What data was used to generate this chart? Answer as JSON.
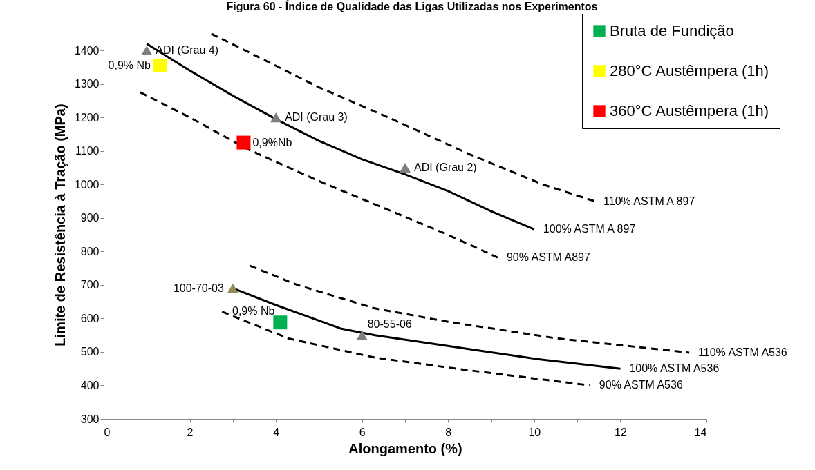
{
  "chart_data": {
    "type": "scatter",
    "title": "Figura 60 - Índice de Qualidade das Ligas Utilizadas nos Experimentos",
    "xlabel": "Alongamento (%)",
    "ylabel": "Limite de Resistência à Tração (MPa)",
    "xlim": [
      0,
      14
    ],
    "xticks": [
      0,
      {
        "value": 1,
        "label": null
      },
      2,
      {
        "value": 3,
        "label": null
      },
      4,
      {
        "value": 5,
        "label": null
      },
      6,
      {
        "value": 7,
        "label": null
      },
      8,
      {
        "value": 9,
        "label": null
      },
      10,
      {
        "value": 11,
        "label": null
      },
      12,
      {
        "value": 13,
        "label": null
      },
      14
    ],
    "ylim": [
      300,
      1460
    ],
    "yticks": [
      300,
      400,
      500,
      600,
      700,
      800,
      900,
      1000,
      1100,
      1200,
      1300,
      1400
    ],
    "grid": false,
    "legend": "top right",
    "series": [
      {
        "type": "line",
        "line_style": "solid",
        "color": "#000000",
        "x": [
          1,
          2,
          3,
          4,
          5,
          6,
          7,
          8,
          9,
          10
        ],
        "values": [
          1420,
          1340,
          1265,
          1195,
          1130,
          1075,
          1030,
          980,
          920,
          866
        ]
      },
      {
        "type": "line",
        "line_style": "dashed",
        "color": "#000000",
        "x": [
          2.5,
          3.6,
          5,
          6.7,
          8.5,
          10.2,
          11.4
        ],
        "values": [
          1450,
          1380,
          1290,
          1195,
          1090,
          1000,
          950
        ]
      },
      {
        "type": "line",
        "line_style": "dashed",
        "color": "#000000",
        "x": [
          0.85,
          2,
          3.35,
          5,
          6.5,
          7.9,
          9.15
        ],
        "values": [
          1275,
          1200,
          1105,
          1010,
          930,
          855,
          782
        ]
      },
      {
        "type": "line",
        "line_style": "solid",
        "color": "#000000",
        "x": [
          3,
          4,
          4.65,
          5.5,
          6.3,
          8.4,
          10,
          12
        ],
        "values": [
          690,
          640,
          610,
          570,
          550,
          510,
          480,
          450
        ]
      },
      {
        "type": "line",
        "line_style": "dashed",
        "color": "#000000",
        "x": [
          3.4,
          4.5,
          6.3,
          8,
          10.5,
          13.6
        ],
        "values": [
          757,
          700,
          630,
          590,
          541,
          498
        ]
      },
      {
        "type": "line",
        "line_style": "dashed",
        "color": "#000000",
        "x": [
          2.75,
          4.3,
          6.3,
          8.5,
          11.3
        ],
        "values": [
          620,
          540,
          483,
          445,
          400
        ]
      },
      {
        "marker": "triangle",
        "color": "#7f7f7f",
        "x": [
          1,
          4,
          7,
          6
        ],
        "values": [
          1400,
          1200,
          1050,
          550
        ]
      },
      {
        "marker": "triangle",
        "color": "#948a54",
        "x": [
          3
        ],
        "values": [
          690
        ]
      },
      {
        "name": "Bruta de Fundição",
        "marker": "square",
        "color": "#00b050",
        "x": [
          4.1
        ],
        "values": [
          588
        ]
      },
      {
        "name": "280°C Austêmpera (1h)",
        "marker": "square",
        "color": "#ffff00",
        "x": [
          1.3
        ],
        "values": [
          1355
        ]
      },
      {
        "name": "360°C Austêmpera (1h)",
        "marker": "square",
        "color": "#ff0000",
        "x": [
          3.25
        ],
        "values": [
          1125
        ]
      }
    ],
    "annotations": [
      {
        "text": "ADI (Grau 4)",
        "x": 1,
        "y": 1400
      },
      {
        "text": "0,9% Nb",
        "x": 1.3,
        "y": 1355
      },
      {
        "text": "ADI (Grau 3)",
        "x": 4,
        "y": 1200
      },
      {
        "text": "0,9%Nb",
        "x": 3.25,
        "y": 1125
      },
      {
        "text": "ADI (Grau 2)",
        "x": 7,
        "y": 1050
      },
      {
        "text": "110% ASTM A 897",
        "x": 11.4,
        "y": 950
      },
      {
        "text": "100% ASTM A 897",
        "x": 10,
        "y": 866
      },
      {
        "text": "90% ASTM A897",
        "x": 9.15,
        "y": 782
      },
      {
        "text": "100-70-03",
        "x": 3,
        "y": 690
      },
      {
        "text": "0,9% Nb",
        "x": 4.1,
        "y": 588
      },
      {
        "text": "80-55-06",
        "x": 6,
        "y": 550
      },
      {
        "text": "110% ASTM A536",
        "x": 13.6,
        "y": 498
      },
      {
        "text": "100% ASTM A536",
        "x": 12,
        "y": 450
      },
      {
        "text": "90% ASTM A536",
        "x": 11.3,
        "y": 400
      }
    ]
  }
}
